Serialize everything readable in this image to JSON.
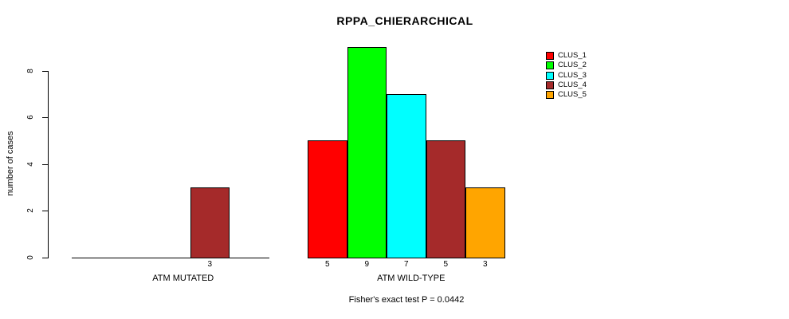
{
  "title": "RPPA_CHIERARCHICAL",
  "subtitle": "Fisher's exact test P = 0.0442",
  "ylabel": "number of cases",
  "legend": {
    "items": [
      {
        "label": "CLUS_1",
        "color": "#FF0000"
      },
      {
        "label": "CLUS_2",
        "color": "#00FF00"
      },
      {
        "label": "CLUS_3",
        "color": "#00FFFF"
      },
      {
        "label": "CLUS_4",
        "color": "#A52A2A"
      },
      {
        "label": "CLUS_5",
        "color": "#FFA500"
      }
    ]
  },
  "chart_data": {
    "type": "bar",
    "title": "RPPA_CHIERARCHICAL",
    "xlabel": "",
    "ylabel": "number of cases",
    "yticks": [
      0,
      2,
      4,
      6,
      8
    ],
    "ylim": [
      0,
      9
    ],
    "grid": false,
    "legend_position": "top-right",
    "clusters": [
      {
        "name": "CLUS_1",
        "color": "#FF0000"
      },
      {
        "name": "CLUS_2",
        "color": "#00FF00"
      },
      {
        "name": "CLUS_3",
        "color": "#00FFFF"
      },
      {
        "name": "CLUS_4",
        "color": "#A52A2A"
      },
      {
        "name": "CLUS_5",
        "color": "#FFA500"
      }
    ],
    "groups": [
      {
        "label": "ATM MUTATED",
        "values": [
          0,
          0,
          0,
          3,
          0
        ]
      },
      {
        "label": "ATM WILD-TYPE",
        "values": [
          5,
          9,
          7,
          5,
          3
        ]
      }
    ],
    "annotation": "Fisher's exact test P = 0.0442"
  }
}
